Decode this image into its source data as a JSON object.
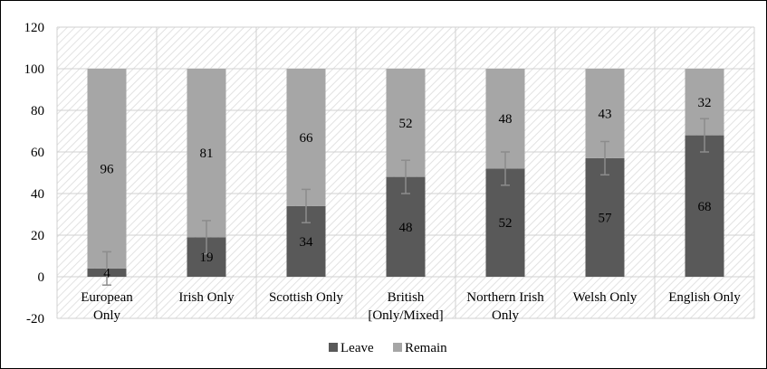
{
  "chart_data": {
    "type": "bar",
    "stacked": true,
    "categories": [
      [
        "European",
        "Only"
      ],
      [
        "Irish Only"
      ],
      [
        "Scottish Only"
      ],
      [
        "British",
        "[Only/Mixed]"
      ],
      [
        "Northern Irish",
        "Only"
      ],
      [
        "Welsh Only"
      ],
      [
        "English Only"
      ]
    ],
    "series": [
      {
        "name": "Leave",
        "color": "#595959",
        "values": [
          4,
          19,
          34,
          48,
          52,
          57,
          68
        ]
      },
      {
        "name": "Remain",
        "color": "#a6a6a6",
        "values": [
          96,
          81,
          66,
          52,
          48,
          43,
          32
        ]
      }
    ],
    "error_bars": {
      "series": "Leave",
      "low": [
        -4,
        11,
        26,
        40,
        44,
        49,
        60
      ],
      "high": [
        12,
        27,
        42,
        56,
        60,
        65,
        76
      ]
    },
    "ylim": [
      -20,
      120
    ],
    "yticks": [
      -20,
      0,
      20,
      40,
      60,
      80,
      100,
      120
    ],
    "grid": true,
    "plot_background": "diagonal-hatch",
    "legend_position": "bottom",
    "title": "",
    "xlabel": "",
    "ylabel": ""
  }
}
